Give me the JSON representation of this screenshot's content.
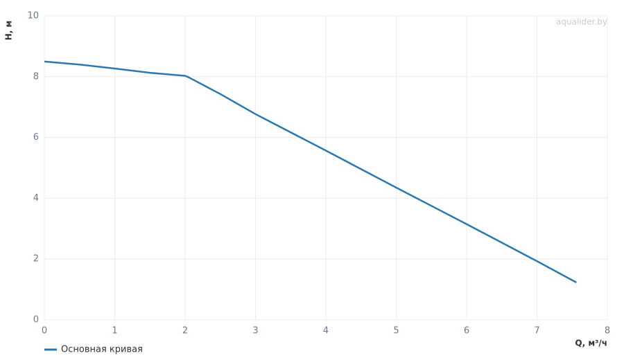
{
  "chart_data": {
    "type": "line",
    "watermark": "aqualider.by",
    "x_label": "Q, м³/ч",
    "y_label": "Н, м",
    "x": [
      0,
      0.5,
      1,
      1.5,
      2,
      2.05,
      2.5,
      3,
      4,
      5,
      6,
      7,
      7.56
    ],
    "series": [
      {
        "name": "Основная кривая",
        "color": "#2a78b0",
        "values": [
          8.5,
          8.4,
          8.27,
          8.13,
          8.03,
          7.98,
          7.43,
          6.77,
          5.57,
          4.35,
          3.15,
          1.93,
          1.23
        ]
      }
    ],
    "xlim": [
      0,
      8
    ],
    "xticks": [
      0,
      1,
      2,
      3,
      4,
      5,
      6,
      7,
      8
    ],
    "ylim": [
      0,
      10
    ],
    "yticks": [
      0,
      2,
      4,
      6,
      8,
      10
    ],
    "grid": true,
    "legend": "bottom-left"
  }
}
